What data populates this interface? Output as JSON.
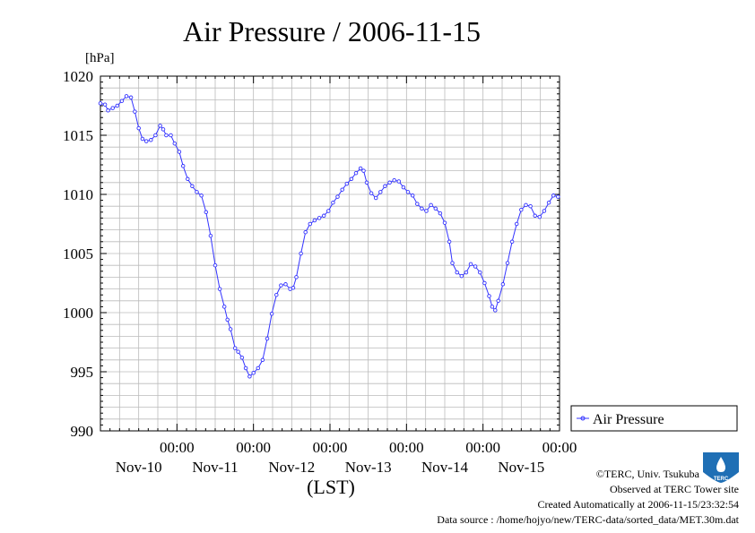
{
  "colors": {
    "series": "#3333ff",
    "grid": "#bbbbbb",
    "frame": "#000000",
    "logo": "#1f6fb5"
  },
  "chart_data": {
    "type": "line",
    "title": "Air Pressure / 2006-11-15",
    "ylabel": "[hPa]",
    "xlabel": "(LST)",
    "ylim": [
      990,
      1020
    ],
    "yticks": [
      990,
      995,
      1000,
      1005,
      1010,
      1015,
      1020
    ],
    "xlim": [
      0,
      6
    ],
    "x_unit": "days since 2006-11-09 00:00 LST",
    "xticks": [
      {
        "x": 1,
        "time": "00:00",
        "date": "Nov-10"
      },
      {
        "x": 2,
        "time": "00:00",
        "date": "Nov-11"
      },
      {
        "x": 3,
        "time": "00:00",
        "date": "Nov-12"
      },
      {
        "x": 4,
        "time": "00:00",
        "date": "Nov-13"
      },
      {
        "x": 5,
        "time": "00:00",
        "date": "Nov-14"
      },
      {
        "x": 6,
        "time": "00:00",
        "date": ""
      }
    ],
    "date_labels": [
      "Nov-10",
      "Nov-11",
      "Nov-12",
      "Nov-13",
      "Nov-14",
      "Nov-15"
    ],
    "grid": true,
    "legend_position": "right",
    "series": [
      {
        "name": "Air Pressure",
        "marker": "circle",
        "points": [
          [
            0.0,
            1017.7
          ],
          [
            0.06,
            1017.6
          ],
          [
            0.1,
            1017.1
          ],
          [
            0.16,
            1017.3
          ],
          [
            0.22,
            1017.5
          ],
          [
            0.28,
            1017.9
          ],
          [
            0.34,
            1018.3
          ],
          [
            0.4,
            1018.2
          ],
          [
            0.45,
            1017.0
          ],
          [
            0.5,
            1015.6
          ],
          [
            0.55,
            1014.7
          ],
          [
            0.6,
            1014.5
          ],
          [
            0.66,
            1014.6
          ],
          [
            0.72,
            1015.0
          ],
          [
            0.78,
            1015.8
          ],
          [
            0.82,
            1015.5
          ],
          [
            0.86,
            1015.0
          ],
          [
            0.92,
            1015.0
          ],
          [
            0.97,
            1014.3
          ],
          [
            1.03,
            1013.6
          ],
          [
            1.08,
            1012.4
          ],
          [
            1.14,
            1011.3
          ],
          [
            1.2,
            1010.7
          ],
          [
            1.26,
            1010.2
          ],
          [
            1.32,
            1009.9
          ],
          [
            1.38,
            1008.5
          ],
          [
            1.44,
            1006.5
          ],
          [
            1.5,
            1004.0
          ],
          [
            1.56,
            1002.0
          ],
          [
            1.62,
            1000.5
          ],
          [
            1.66,
            999.4
          ],
          [
            1.7,
            998.6
          ],
          [
            1.76,
            997.0
          ],
          [
            1.8,
            996.7
          ],
          [
            1.85,
            996.2
          ],
          [
            1.9,
            995.3
          ],
          [
            1.95,
            994.6
          ],
          [
            2.0,
            994.9
          ],
          [
            2.06,
            995.3
          ],
          [
            2.12,
            996.0
          ],
          [
            2.18,
            997.8
          ],
          [
            2.24,
            999.9
          ],
          [
            2.3,
            1001.5
          ],
          [
            2.36,
            1002.3
          ],
          [
            2.42,
            1002.4
          ],
          [
            2.48,
            1002.0
          ],
          [
            2.52,
            1002.1
          ],
          [
            2.56,
            1003.0
          ],
          [
            2.62,
            1005.0
          ],
          [
            2.68,
            1006.8
          ],
          [
            2.74,
            1007.5
          ],
          [
            2.8,
            1007.8
          ],
          [
            2.86,
            1008.0
          ],
          [
            2.92,
            1008.2
          ],
          [
            2.98,
            1008.6
          ],
          [
            3.04,
            1009.3
          ],
          [
            3.1,
            1009.8
          ],
          [
            3.16,
            1010.4
          ],
          [
            3.22,
            1010.9
          ],
          [
            3.28,
            1011.3
          ],
          [
            3.34,
            1011.8
          ],
          [
            3.4,
            1012.2
          ],
          [
            3.44,
            1012.0
          ],
          [
            3.48,
            1011.0
          ],
          [
            3.54,
            1010.1
          ],
          [
            3.6,
            1009.7
          ],
          [
            3.66,
            1010.2
          ],
          [
            3.72,
            1010.7
          ],
          [
            3.78,
            1011.0
          ],
          [
            3.84,
            1011.2
          ],
          [
            3.9,
            1011.1
          ],
          [
            3.96,
            1010.6
          ],
          [
            4.02,
            1010.2
          ],
          [
            4.08,
            1009.9
          ],
          [
            4.14,
            1009.2
          ],
          [
            4.2,
            1008.8
          ],
          [
            4.26,
            1008.6
          ],
          [
            4.32,
            1009.1
          ],
          [
            4.38,
            1008.8
          ],
          [
            4.44,
            1008.4
          ],
          [
            4.5,
            1007.6
          ],
          [
            4.56,
            1006.0
          ],
          [
            4.6,
            1004.2
          ],
          [
            4.66,
            1003.4
          ],
          [
            4.72,
            1003.1
          ],
          [
            4.78,
            1003.4
          ],
          [
            4.84,
            1004.1
          ],
          [
            4.9,
            1003.9
          ],
          [
            4.96,
            1003.4
          ],
          [
            5.02,
            1002.5
          ],
          [
            5.08,
            1001.4
          ],
          [
            5.12,
            1000.5
          ],
          [
            5.16,
            1000.2
          ],
          [
            5.2,
            1001.0
          ],
          [
            5.26,
            1002.4
          ],
          [
            5.32,
            1004.2
          ],
          [
            5.38,
            1006.0
          ],
          [
            5.44,
            1007.5
          ],
          [
            5.5,
            1008.7
          ],
          [
            5.56,
            1009.1
          ],
          [
            5.62,
            1009.0
          ],
          [
            5.68,
            1008.2
          ],
          [
            5.74,
            1008.1
          ],
          [
            5.8,
            1008.6
          ],
          [
            5.86,
            1009.3
          ],
          [
            5.92,
            1009.9
          ],
          [
            5.98,
            1009.8
          ],
          [
            6.04,
            1010.2
          ],
          [
            6.1,
            1009.3
          ],
          [
            6.16,
            1009.9
          ],
          [
            6.22,
            1009.6
          ],
          [
            6.25,
            1009.5
          ]
        ]
      }
    ]
  },
  "credits": {
    "copyright": "©TERC, Univ. Tsukuba",
    "observed": "Observed at TERC Tower site",
    "created": "Created Automatically at 2006-11-15/23:32:54",
    "source": "Data source : /home/hojyo/new/TERC-data/sorted_data/MET.30m.dat",
    "logo_text": "TERC"
  }
}
